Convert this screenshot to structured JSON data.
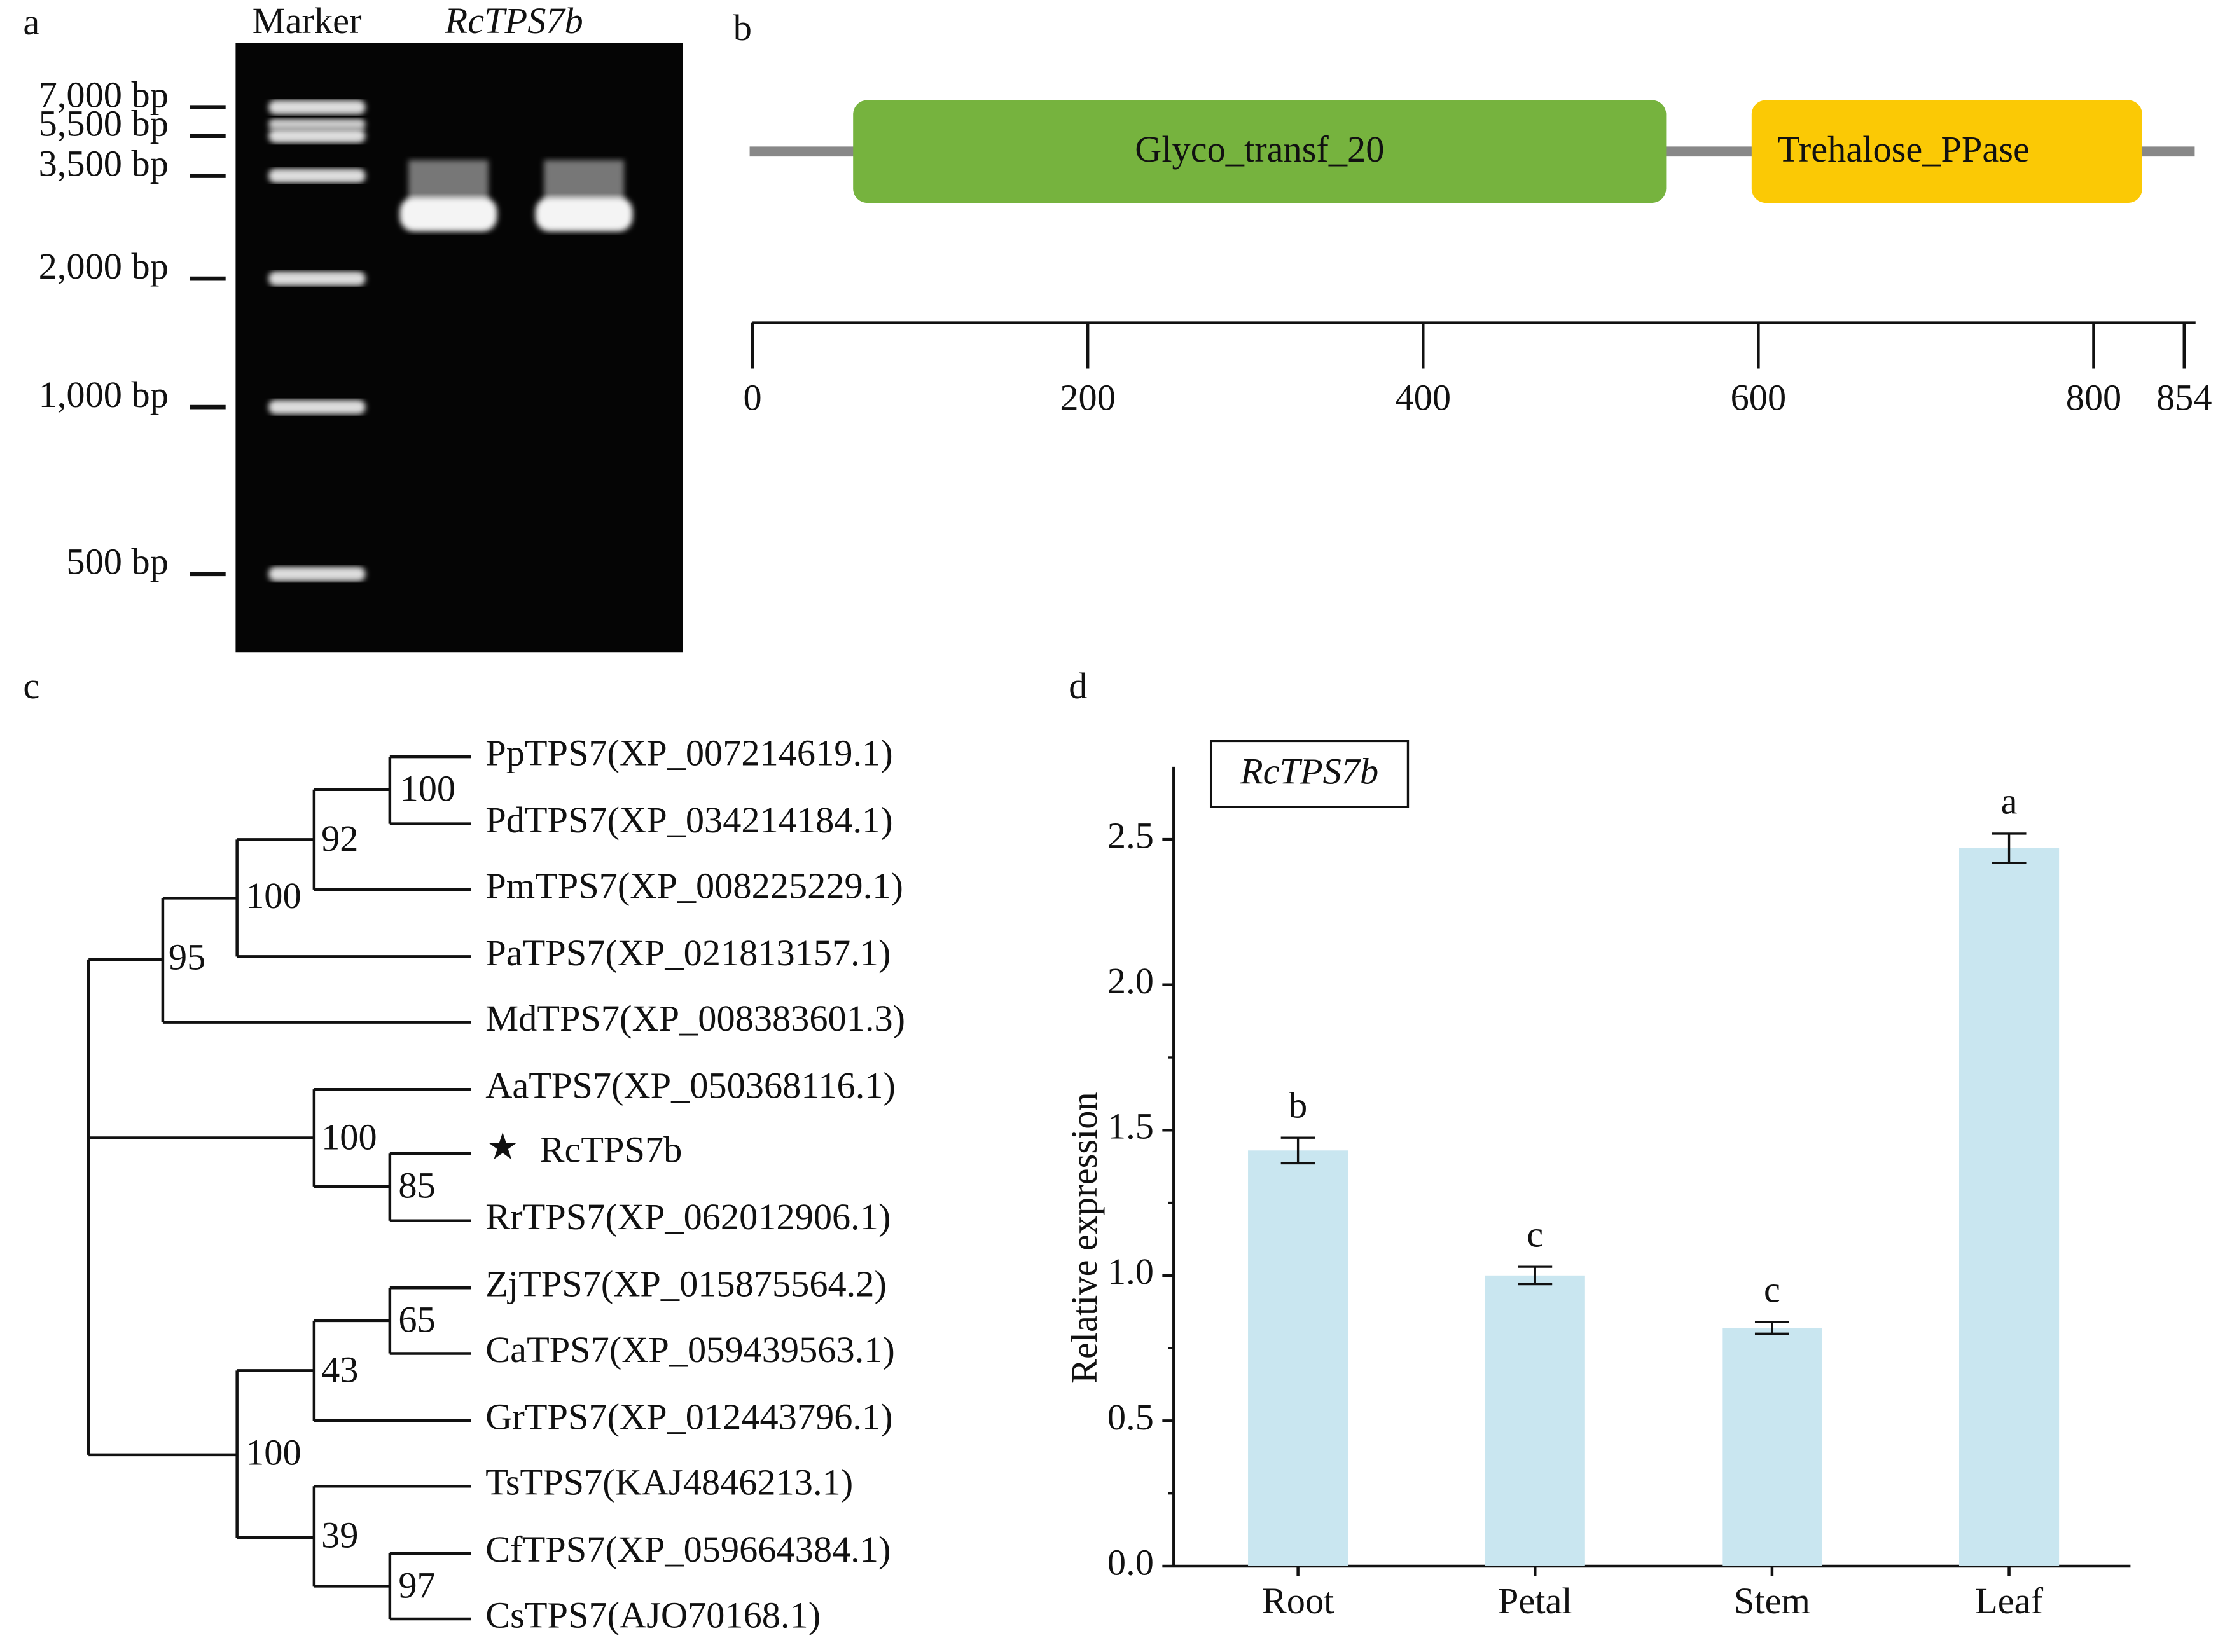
{
  "panel_labels": [
    "a",
    "b",
    "c",
    "d"
  ],
  "gel": {
    "lane_labels": [
      "Marker",
      "RcTPS7b"
    ],
    "markers": [
      "7,000 bp",
      "5,500 bp",
      "3,500 bp",
      "2,000 bp",
      "1,000 bp",
      "500 bp"
    ]
  },
  "domain_map": {
    "length": 854,
    "domains": [
      {
        "name": "Glyco_transf_20",
        "start": 60,
        "end": 545,
        "color": "#76b33e"
      },
      {
        "name": "Trehalose_PPase",
        "start": 596,
        "end": 829,
        "color": "#fbc905"
      }
    ],
    "ticks": [
      0,
      200,
      400,
      600,
      800,
      854
    ]
  },
  "tree": {
    "leaves": [
      "PpTPS7(XP_007214619.1)",
      "PdTPS7(XP_034214184.1)",
      "PmTPS7(XP_008225229.1)",
      "PaTPS7(XP_021813157.1)",
      "MdTPS7(XP_008383601.3)",
      "AaTPS7(XP_050368116.1)",
      "RcTPS7b",
      "RrTPS7(XP_062012906.1)",
      "ZjTPS7(XP_015875564.2)",
      "CaTPS7(XP_059439563.1)",
      "GrTPS7(XP_012443796.1)",
      "TsTPS7(KAJ4846213.1)",
      "CfTPS7(XP_059664384.1)",
      "CsTPS7(AJO70168.1)"
    ],
    "bootstrap": [
      100,
      92,
      100,
      95,
      100,
      85,
      65,
      43,
      100,
      39,
      97
    ]
  },
  "chart_data": {
    "type": "bar",
    "title": "RcTPS7b",
    "y_label": "Relative expression",
    "categories": [
      "Root",
      "Petal",
      "Stem",
      "Leaf"
    ],
    "values": [
      1.43,
      1.0,
      0.82,
      2.47
    ],
    "errors": [
      0.044,
      0.03,
      0.02,
      0.05
    ],
    "annotations": [
      "b",
      "c",
      "c",
      "a"
    ],
    "color": "#c9e6f0",
    "ylim": [
      0,
      2.75
    ],
    "yticks": [
      {
        "value": 0,
        "label": "0.0"
      },
      0.5,
      {
        "value": 1,
        "label": "1.0"
      },
      1.5,
      {
        "value": 2,
        "label": "2.0"
      },
      2.5
    ]
  }
}
